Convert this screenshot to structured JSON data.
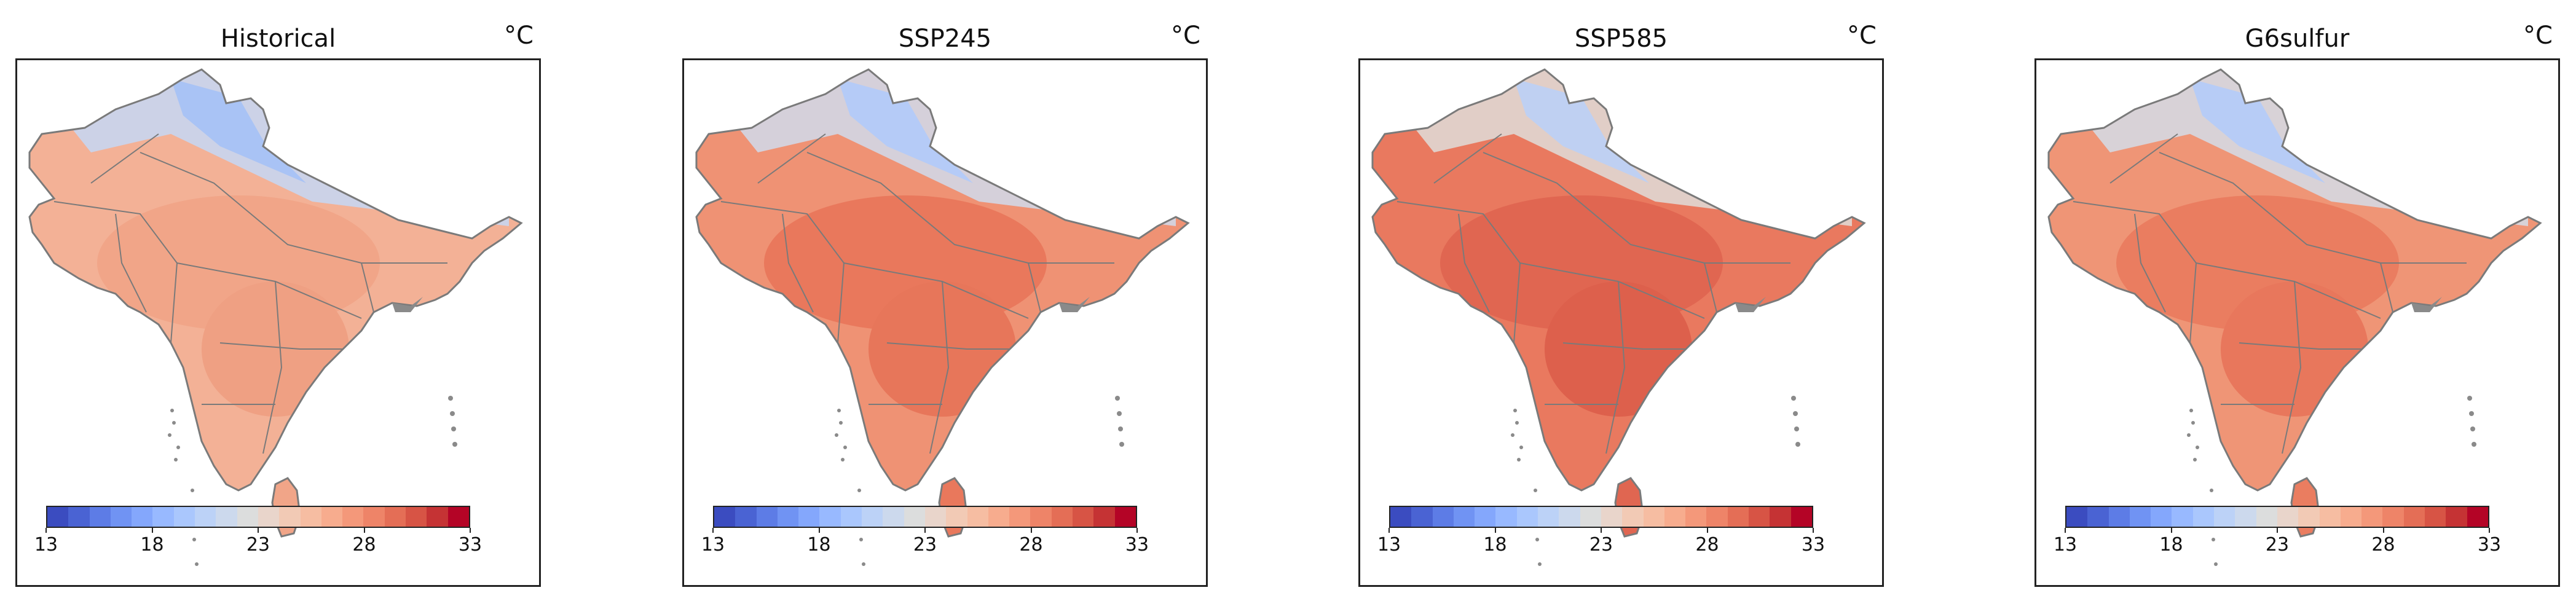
{
  "colormap": [
    "#3b4cc0",
    "#4a63d3",
    "#5d7ce6",
    "#7093f3",
    "#84a7fc",
    "#98b9ff",
    "#aac7fd",
    "#bcd2f7",
    "#ccd9ed",
    "#dcdddd",
    "#e9d5cb",
    "#f2cab5",
    "#f6bda2",
    "#f7ac8e",
    "#f4987a",
    "#ee8468",
    "#e46e56",
    "#d75445",
    "#c53334",
    "#b40426"
  ],
  "colorbar_range": [
    13,
    33
  ],
  "colorbar_ticks": [
    "13",
    "18",
    "23",
    "28",
    "33"
  ],
  "panels": [
    {
      "title": "Historical",
      "unit": "°C",
      "fills": [
        "#f3b196",
        "#f1a588",
        "#efa083",
        "#c8d6ef",
        "#a9c3f5"
      ]
    },
    {
      "title": "SSP245",
      "unit": "°C",
      "fills": [
        "#ef9274",
        "#e9785c",
        "#e7765a",
        "#d2d7e6",
        "#b5cbf7"
      ]
    },
    {
      "title": "SSP585",
      "unit": "°C",
      "fills": [
        "#e9795f",
        "#e06651",
        "#dd604c",
        "#e0d7d3",
        "#bfd0f2"
      ]
    },
    {
      "title": "G6sulfur",
      "unit": "°C",
      "fills": [
        "#ef9576",
        "#ea7d60",
        "#e8775c",
        "#d5d8e2",
        "#b7ccf6"
      ]
    }
  ]
}
